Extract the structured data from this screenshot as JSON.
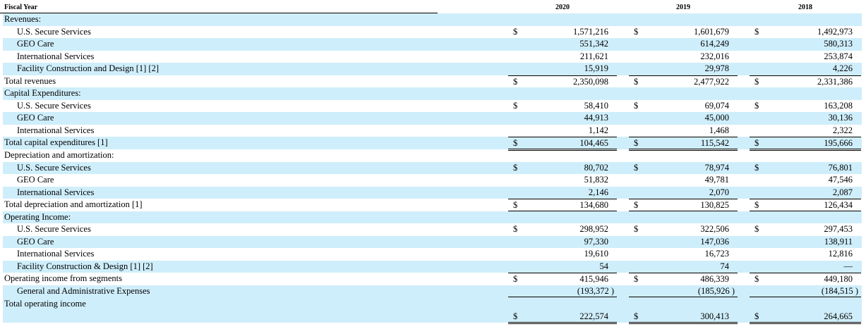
{
  "header": {
    "label": "Fiscal Year",
    "years": [
      "2020",
      "2019",
      "2018"
    ]
  },
  "rows": [
    {
      "label": "Revenues:",
      "indent": false
    },
    {
      "label": "U.S. Secure Services",
      "indent": true,
      "dollar": true,
      "values": [
        "1,571,216",
        "1,601,679",
        "1,492,973"
      ]
    },
    {
      "label": "GEO Care",
      "indent": true,
      "values": [
        "551,342",
        "614,249",
        "580,313"
      ]
    },
    {
      "label": "International Services",
      "indent": true,
      "values": [
        "211,621",
        "232,016",
        "253,874"
      ]
    },
    {
      "label": "Facility Construction and Design [1] [2]",
      "indent": true,
      "values": [
        "15,919",
        "29,978",
        "4,226"
      ]
    },
    {
      "label": "Total revenues",
      "indent": false,
      "dollar": true,
      "total": true,
      "values": [
        "2,350,098",
        "2,477,922",
        "2,331,386"
      ]
    },
    {
      "label": "Capital Expenditures:",
      "indent": false
    },
    {
      "label": "U.S. Secure Services",
      "indent": true,
      "dollar": true,
      "values": [
        "58,410",
        "69,074",
        "163,208"
      ]
    },
    {
      "label": "GEO Care",
      "indent": true,
      "values": [
        "44,913",
        "45,000",
        "30,136"
      ]
    },
    {
      "label": "International Services",
      "indent": true,
      "values": [
        "1,142",
        "1,468",
        "2,322"
      ]
    },
    {
      "label": "Total capital expenditures [1]",
      "indent": false,
      "dollar": true,
      "total": true,
      "values": [
        "104,465",
        "115,542",
        "195,666"
      ]
    },
    {
      "label": "Depreciation and amortization:",
      "indent": false
    },
    {
      "label": "U.S. Secure Services",
      "indent": true,
      "dollar": true,
      "values": [
        "80,702",
        "78,974",
        "76,801"
      ]
    },
    {
      "label": "GEO Care",
      "indent": true,
      "values": [
        "51,832",
        "49,781",
        "47,546"
      ]
    },
    {
      "label": "International Services",
      "indent": true,
      "values": [
        "2,146",
        "2,070",
        "2,087"
      ]
    },
    {
      "label": "Total depreciation and amortization [1]",
      "indent": false,
      "dollar": true,
      "total": true,
      "values": [
        "134,680",
        "130,825",
        "126,434"
      ]
    },
    {
      "label": "Operating Income:",
      "indent": false
    },
    {
      "label": "U.S. Secure Services",
      "indent": true,
      "dollar": true,
      "values": [
        "298,952",
        "322,506",
        "297,453"
      ]
    },
    {
      "label": "GEO Care",
      "indent": true,
      "values": [
        "97,330",
        "147,036",
        "138,911"
      ]
    },
    {
      "label": "International Services",
      "indent": true,
      "values": [
        "19,610",
        "16,723",
        "12,816"
      ]
    },
    {
      "label": "Facility Construction & Design [1] [2]",
      "indent": true,
      "values": [
        "54",
        "74",
        "—"
      ]
    },
    {
      "label": "Operating income from segments",
      "indent": false,
      "dollar": true,
      "subtotal": true,
      "values": [
        "415,946",
        "486,339",
        "449,180"
      ]
    },
    {
      "label": "General and Administrative Expenses",
      "indent": true,
      "underline": true,
      "values": [
        "(193,372 )",
        "(185,926 )",
        "(184,515 )"
      ]
    },
    {
      "label": "Total operating income",
      "indent": false,
      "dollar": true,
      "grand": true,
      "values": [
        "222,574",
        "300,413",
        "264,665"
      ]
    }
  ],
  "currency_symbol": "$",
  "colors": {
    "stripe": "#cfeefb"
  }
}
